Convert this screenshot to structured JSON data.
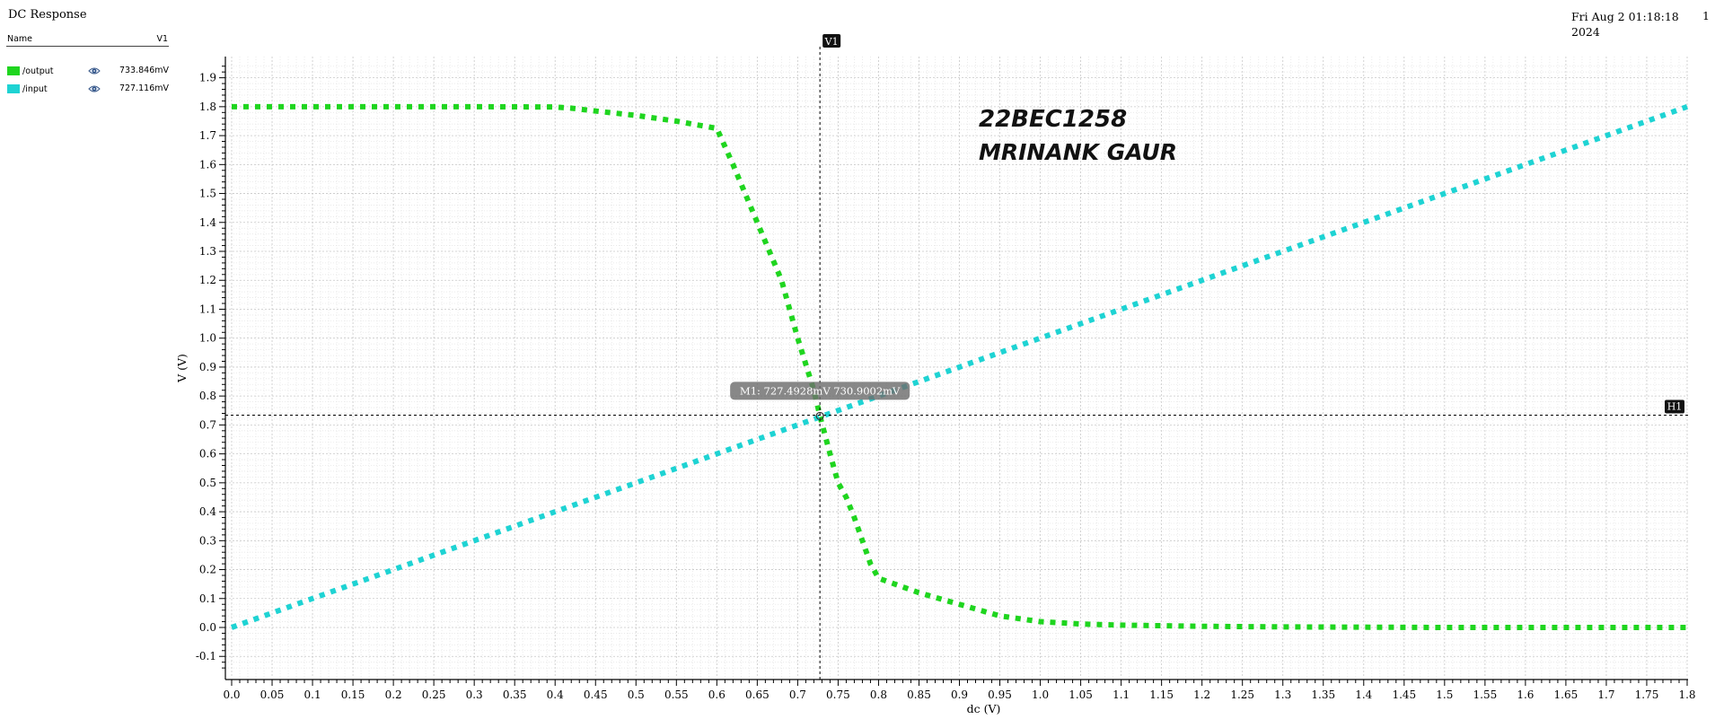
{
  "window": {
    "title": "DC Response",
    "datetime_line1": "Fri Aug 2 01:18:18",
    "datetime_line2": "2024",
    "page": "1"
  },
  "legend": {
    "header_name": "Name",
    "header_col": "V1",
    "signals": [
      {
        "name": "/output",
        "value": "733.846mV",
        "color": "#1fd51f",
        "icon": "eye-icon"
      },
      {
        "name": "/input",
        "value": "727.116mV",
        "color": "#1ed3d3",
        "icon": "eye-icon"
      }
    ]
  },
  "annotations": {
    "line1": "22BEC1258",
    "line2": "MRINANK GAUR"
  },
  "markers": {
    "v_label": "V1",
    "h_label": "H1",
    "m_label": "M1: 727.4928mV 730.9002mV",
    "v_x": 0.7275,
    "h_y": 0.7338,
    "m_x": 0.7275,
    "m_y": 0.7309
  },
  "chart_data": {
    "type": "line",
    "xlabel": "dc (V)",
    "ylabel": "V (V)",
    "xlim": [
      0.0,
      1.8
    ],
    "ylim": [
      -0.15,
      1.95
    ],
    "grid": true,
    "x_ticks": [
      "0.0",
      "0.05",
      "0.1",
      "0.15",
      "0.2",
      "0.25",
      "0.3",
      "0.35",
      "0.4",
      "0.45",
      "0.5",
      "0.55",
      "0.6",
      "0.65",
      "0.7",
      "0.75",
      "0.8",
      "0.85",
      "0.9",
      "0.95",
      "1.0",
      "1.05",
      "1.1",
      "1.15",
      "1.2",
      "1.25",
      "1.3",
      "1.35",
      "1.4",
      "1.45",
      "1.5",
      "1.55",
      "1.6",
      "1.65",
      "1.7",
      "1.75",
      "1.8"
    ],
    "y_ticks": [
      "-0.1",
      "0.0",
      "0.1",
      "0.2",
      "0.3",
      "0.4",
      "0.5",
      "0.6",
      "0.7",
      "0.8",
      "0.9",
      "1.0",
      "1.1",
      "1.2",
      "1.3",
      "1.4",
      "1.5",
      "1.6",
      "1.7",
      "1.8",
      "1.9"
    ],
    "series": [
      {
        "name": "/output",
        "color": "#1fd51f",
        "points": [
          [
            0.0,
            1.8
          ],
          [
            0.1,
            1.8
          ],
          [
            0.2,
            1.8
          ],
          [
            0.3,
            1.8
          ],
          [
            0.4,
            1.799
          ],
          [
            0.42,
            1.795
          ],
          [
            0.45,
            1.785
          ],
          [
            0.5,
            1.77
          ],
          [
            0.55,
            1.75
          ],
          [
            0.6,
            1.725
          ],
          [
            0.62,
            1.6
          ],
          [
            0.65,
            1.4
          ],
          [
            0.68,
            1.2
          ],
          [
            0.7,
            1.0
          ],
          [
            0.72,
            0.82
          ],
          [
            0.7275,
            0.731
          ],
          [
            0.74,
            0.6
          ],
          [
            0.75,
            0.5
          ],
          [
            0.76,
            0.45
          ],
          [
            0.77,
            0.38
          ],
          [
            0.78,
            0.3
          ],
          [
            0.79,
            0.22
          ],
          [
            0.8,
            0.17
          ],
          [
            0.85,
            0.12
          ],
          [
            0.9,
            0.08
          ],
          [
            0.95,
            0.04
          ],
          [
            1.0,
            0.02
          ],
          [
            1.05,
            0.012
          ],
          [
            1.1,
            0.008
          ],
          [
            1.2,
            0.004
          ],
          [
            1.3,
            0.002
          ],
          [
            1.4,
            0.001
          ],
          [
            1.5,
            0.0
          ],
          [
            1.6,
            0.0
          ],
          [
            1.7,
            0.0
          ],
          [
            1.8,
            0.0
          ]
        ]
      },
      {
        "name": "/input",
        "color": "#1ed3d3",
        "points": [
          [
            0.0,
            0.0
          ],
          [
            1.8,
            1.8
          ]
        ]
      }
    ]
  }
}
